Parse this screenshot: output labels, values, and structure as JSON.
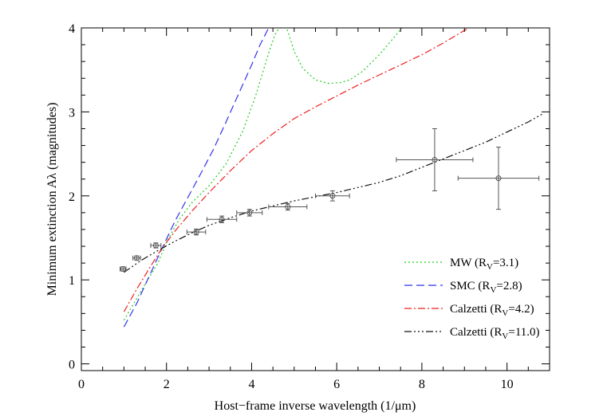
{
  "chart_data": {
    "type": "line",
    "title": "",
    "xlabel": "Host−frame inverse wavelength (1/μm)",
    "ylabel": "Minimum extinction Aλ (magnitudes)",
    "xlim": [
      0,
      11
    ],
    "ylim": [
      -0.08,
      4.0
    ],
    "x_ticks": [
      0,
      2,
      4,
      6,
      8,
      10
    ],
    "x_tick_labels": [
      "0",
      "2",
      "4",
      "6",
      "8",
      "10"
    ],
    "y_ticks": [
      0,
      1,
      2,
      3,
      4
    ],
    "y_tick_labels": [
      "0",
      "1",
      "2",
      "3",
      "4"
    ],
    "x_minor_step": 0.5,
    "y_minor_step": 0.2,
    "grid": false,
    "legend_position": "bottom-right",
    "legend": [
      {
        "text": "MW (R",
        "sub": "V",
        "suffix": "=3.1)",
        "color": "#22cc22",
        "dash": "2,3",
        "series": "MW"
      },
      {
        "text": "SMC (R",
        "sub": "V",
        "suffix": "=2.8)",
        "color": "#3333ee",
        "dash": "10,5",
        "series": "SMC"
      },
      {
        "text": "Calzetti (R",
        "sub": "V",
        "suffix": "=4.2)",
        "color": "#ee2222",
        "dash": "9,3,2,3",
        "series": "Calzetti42"
      },
      {
        "text": "Calzetti (R",
        "sub": "V",
        "suffix": "=11.0)",
        "color": "#111111",
        "dash": "9,3,2,3,2,3,2,3",
        "series": "Calzetti110"
      }
    ],
    "series": [
      {
        "name": "MW (RV=3.1)",
        "key": "MW",
        "color": "#22cc22",
        "x": [
          1.0,
          1.5,
          1.8,
          2.0,
          2.3,
          2.6,
          3.0,
          3.4,
          3.8,
          4.1,
          4.4,
          4.55,
          4.7,
          4.8,
          4.85,
          4.9,
          5.0,
          5.2,
          5.5,
          5.8,
          6.1,
          6.3,
          6.6,
          7.0,
          7.3,
          7.5,
          7.7
        ],
        "values": [
          0.52,
          0.95,
          1.2,
          1.45,
          1.72,
          1.92,
          2.12,
          2.38,
          2.78,
          3.2,
          3.7,
          3.92,
          4.04,
          4.02,
          3.96,
          3.88,
          3.72,
          3.52,
          3.38,
          3.34,
          3.35,
          3.38,
          3.48,
          3.68,
          3.86,
          3.98,
          4.1
        ]
      },
      {
        "name": "SMC (RV=2.8)",
        "key": "SMC",
        "color": "#3333ee",
        "x": [
          1.0,
          1.3,
          1.6,
          1.9,
          2.2,
          2.5,
          2.8,
          3.1,
          3.4,
          3.7,
          4.0,
          4.2,
          4.4,
          4.5
        ],
        "values": [
          0.44,
          0.72,
          1.05,
          1.38,
          1.7,
          1.98,
          2.26,
          2.55,
          2.88,
          3.22,
          3.56,
          3.8,
          4.0,
          4.1
        ]
      },
      {
        "name": "Calzetti (RV=4.2)",
        "key": "Calzetti42",
        "color": "#ee2222",
        "x": [
          1.0,
          1.3,
          1.6,
          1.9,
          2.2,
          2.6,
          3.0,
          3.5,
          4.0,
          4.5,
          5.0,
          5.5,
          6.0,
          6.5,
          7.0,
          7.5,
          8.0,
          8.5,
          9.0,
          9.5,
          10.0,
          10.5,
          10.9
        ],
        "values": [
          0.62,
          0.89,
          1.14,
          1.38,
          1.58,
          1.82,
          2.04,
          2.3,
          2.54,
          2.74,
          2.92,
          3.06,
          3.19,
          3.32,
          3.44,
          3.56,
          3.68,
          3.82,
          3.97,
          4.12,
          4.27,
          4.42,
          4.55
        ]
      },
      {
        "name": "Calzetti (RV=11.0)",
        "key": "Calzetti110",
        "color": "#111111",
        "x": [
          1.0,
          1.4,
          1.8,
          2.2,
          2.6,
          3.0,
          3.5,
          4.0,
          4.5,
          5.0,
          5.5,
          6.0,
          6.5,
          7.0,
          7.5,
          8.0,
          8.5,
          9.0,
          9.5,
          10.0,
          10.5,
          10.85
        ],
        "values": [
          1.09,
          1.23,
          1.35,
          1.46,
          1.56,
          1.65,
          1.74,
          1.82,
          1.88,
          1.94,
          1.99,
          2.04,
          2.1,
          2.16,
          2.24,
          2.34,
          2.44,
          2.54,
          2.64,
          2.76,
          2.88,
          2.98
        ]
      }
    ],
    "data_points": {
      "name": "observations",
      "color": "#555555",
      "points": [
        {
          "x": 0.98,
          "y": 1.13,
          "xerr": 0.07,
          "yerr": 0.025
        },
        {
          "x": 1.3,
          "y": 1.26,
          "xerr": 0.09,
          "yerr": 0.025
        },
        {
          "x": 1.75,
          "y": 1.41,
          "xerr": 0.12,
          "yerr": 0.03
        },
        {
          "x": 2.7,
          "y": 1.57,
          "xerr": 0.22,
          "yerr": 0.035
        },
        {
          "x": 3.3,
          "y": 1.72,
          "xerr": 0.35,
          "yerr": 0.04
        },
        {
          "x": 3.95,
          "y": 1.8,
          "xerr": 0.3,
          "yerr": 0.04
        },
        {
          "x": 4.85,
          "y": 1.87,
          "xerr": 0.45,
          "yerr": 0.04
        },
        {
          "x": 5.9,
          "y": 2.0,
          "xerr": 0.4,
          "yerr": 0.06
        },
        {
          "x": 8.3,
          "y": 2.43,
          "xerr": 0.9,
          "yerr": 0.37
        },
        {
          "x": 9.8,
          "y": 2.21,
          "xerr": 0.95,
          "yerr": 0.37
        }
      ]
    }
  }
}
